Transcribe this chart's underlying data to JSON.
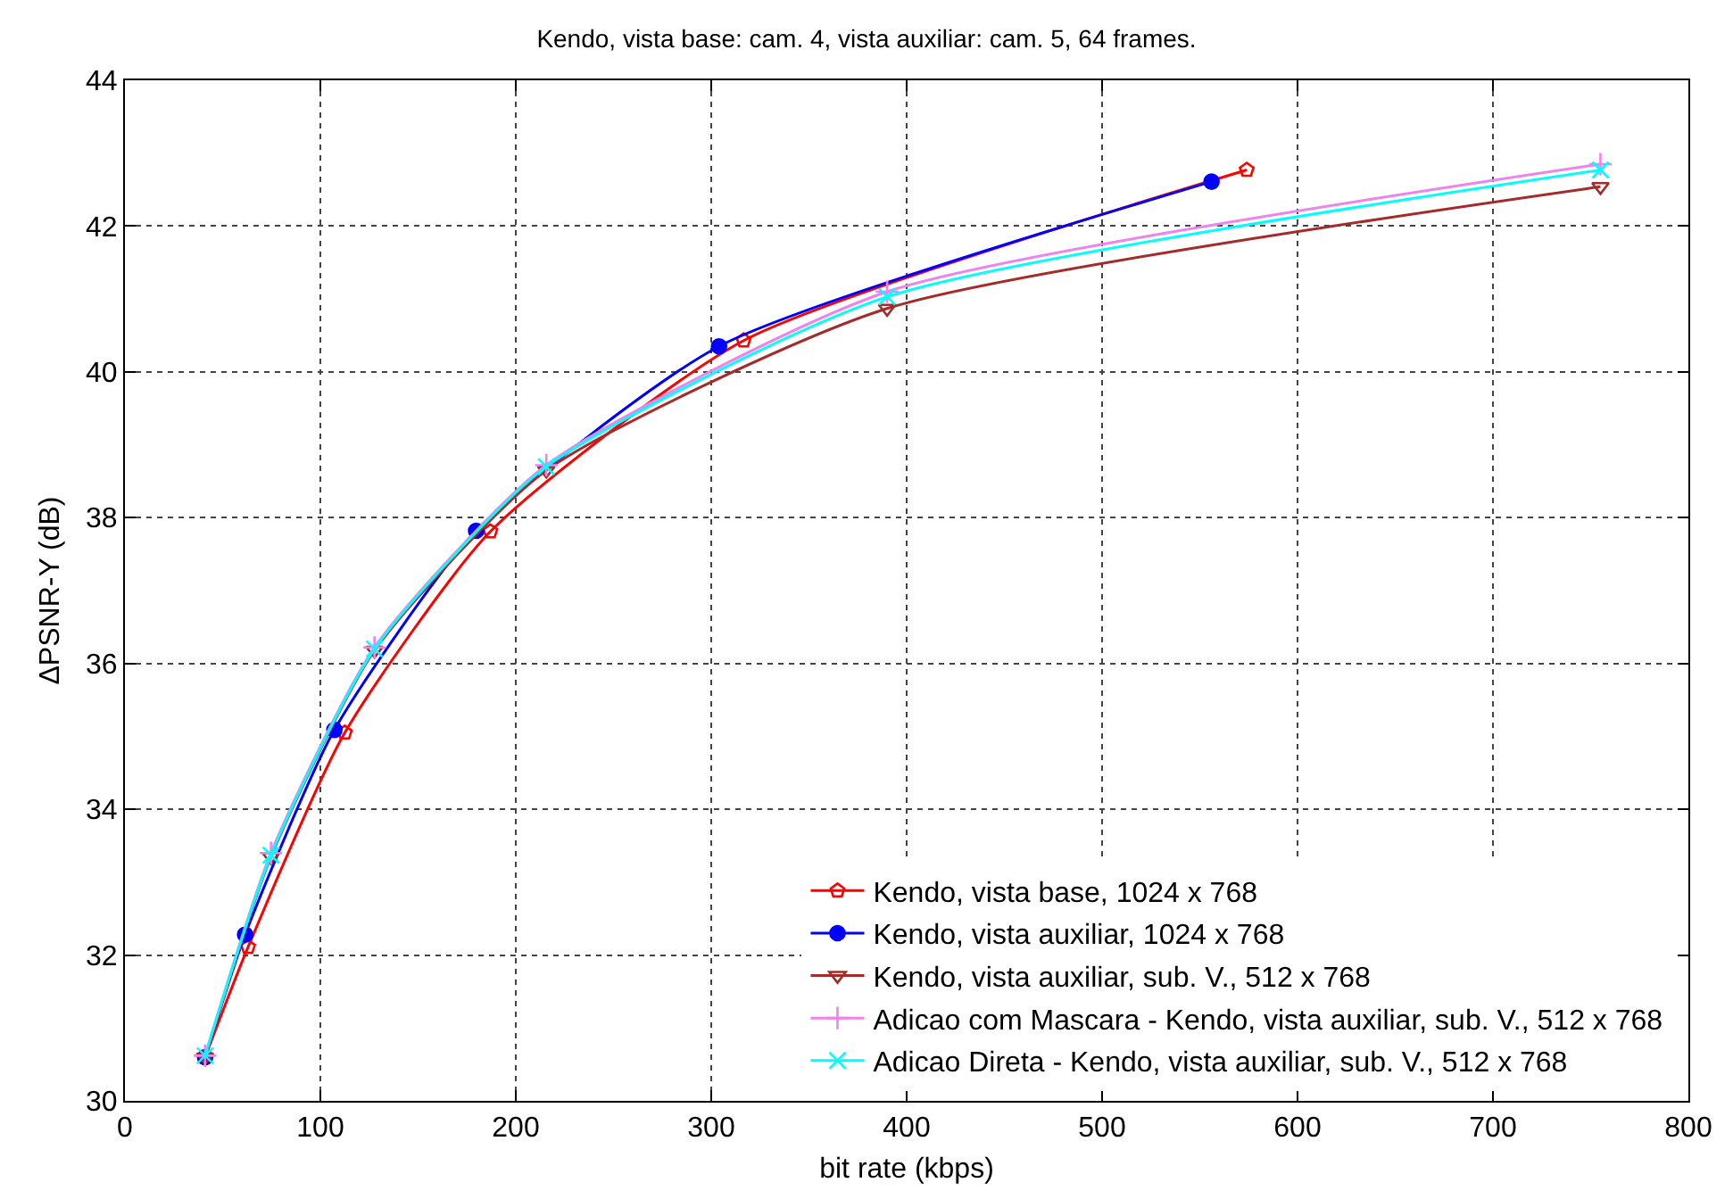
{
  "chart_data": {
    "type": "line",
    "title": "Kendo, vista base: cam. 4, vista auxiliar: cam. 5, 64 frames.",
    "xlabel": "bit rate (kbps)",
    "ylabel": "ΔPSNR-Y (dB)",
    "xlim": [
      0,
      800
    ],
    "xticks": [
      0,
      100,
      200,
      300,
      400,
      500,
      600,
      700,
      800
    ],
    "ylim": [
      30,
      44
    ],
    "yticks": [
      30,
      32,
      34,
      36,
      38,
      40,
      42,
      44
    ],
    "grid": true,
    "legend": "bottom right",
    "line_style": "solid",
    "series": [
      {
        "name": "Kendo, vista base, 1024 x 768",
        "color": "#ff0000",
        "marker": "star",
        "x": [
          41,
          63,
          112.5,
          187,
          316.6,
          574
        ],
        "values": [
          30.6,
          32.11,
          35.05,
          37.81,
          40.43,
          42.77
        ]
      },
      {
        "name": "Kendo, vista auxiliar, 1024 x 768",
        "color": "#0000ff",
        "marker": "circle",
        "x": [
          41,
          61.5,
          107.2,
          179.7,
          304,
          556
        ],
        "values": [
          30.6,
          32.28,
          35.09,
          37.82,
          40.35,
          42.61
        ]
      },
      {
        "name": "Kendo, vista auxiliar, sub. V., 512 x 768",
        "color": "#a52a2a",
        "marker": "triangle",
        "x": [
          41,
          74.7,
          127.7,
          215.6,
          390,
          755
        ],
        "values": [
          30.6,
          33.35,
          36.18,
          38.65,
          40.87,
          42.54
        ]
      },
      {
        "name": "Adicao com Mascara - Kendo, vista auxiliar, sub. V., 512 x 768",
        "color": "#ee82ee",
        "marker": "cross",
        "x": [
          41,
          74.7,
          127.7,
          215.6,
          390,
          755
        ],
        "values": [
          30.62,
          33.4,
          36.22,
          38.72,
          41.1,
          42.85
        ]
      },
      {
        "name": "Adicao Direta - Kendo, vista auxiliar, sub. V., 512 x 768",
        "color": "#00ffff",
        "marker": "cross",
        "x": [
          41,
          74.7,
          127.7,
          215.6,
          390,
          755
        ],
        "values": [
          30.62,
          33.37,
          36.2,
          38.7,
          41.03,
          42.77
        ]
      }
    ]
  }
}
